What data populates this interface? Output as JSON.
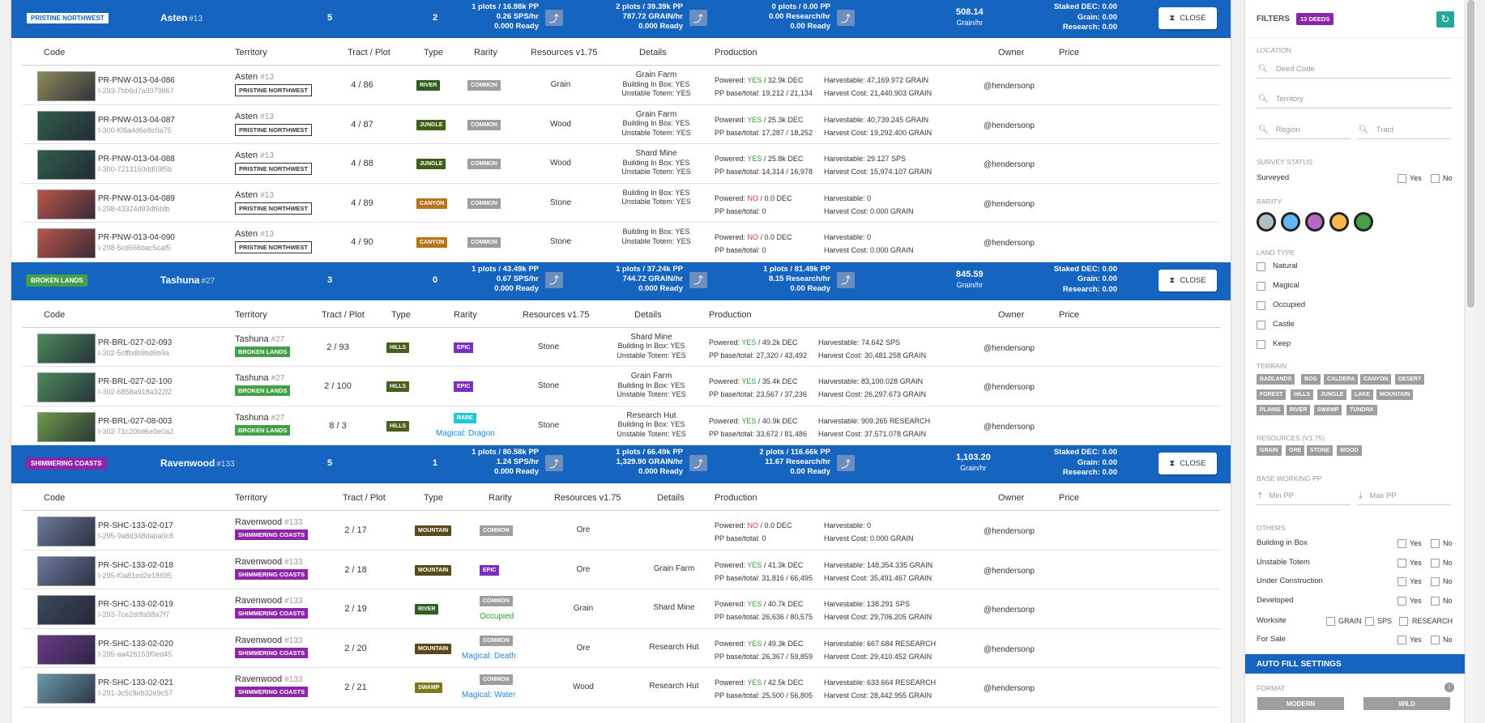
{
  "groups": [
    {
      "region": "PRISTINE NORTHWEST",
      "region_color": "#ffffff",
      "region_text": "#1565c0",
      "name": "Asten",
      "num": "#13",
      "deeds": "5",
      "zero": "2",
      "p1": [
        "1 plots / 16.98k PP",
        "0.26 SPS/hr",
        "0.000 Ready"
      ],
      "p2": [
        "2 plots / 39.39k PP",
        "787.72 GRAIN/hr",
        "0.000 Ready"
      ],
      "p3": [
        "0 plots / 0.00 PP",
        "0.00 Research/hr",
        "0.00 Ready"
      ],
      "rate": "508.14",
      "rate_unit": "Grain/hr",
      "staked": [
        "Staked DEC: 0.00",
        "Grain: 0.00",
        "Research: 0.00"
      ],
      "close": "CLOSE",
      "cols": [
        "Code",
        "Territory",
        "Tract / Plot",
        "Type",
        "Rarity",
        "Resources v1.75",
        "Details",
        "Production",
        "Owner",
        "Price"
      ],
      "rows": [
        {
          "code": "PR-PNW-013-04-086",
          "sub": "I-293-7bb6d7a3979867",
          "terr": "Asten",
          "tnum": "#13",
          "region": "PRISTINE NORTHWEST",
          "tp": "4 / 86",
          "type": "RIVER",
          "type_color": "#2e5e1e",
          "rarity": "COMMON",
          "rar_color": "#9e9e9e",
          "rar_extra": "",
          "res": "Grain",
          "det": [
            "Grain Farm",
            "Building In Box: YES",
            "Unstable Totem: YES"
          ],
          "pw": "YES",
          "pwv": "32.9k DEC",
          "ppl": "PP base/total:",
          "pp": "19,212 / 21,134",
          "hv": "Harvestable: 47,169.972 GRAIN",
          "hc": "Harvest Cost: 21,440.903 GRAIN",
          "owner": "@hendersonp",
          "thumb": "#8a8a5a"
        },
        {
          "code": "PR-PNW-013-04-087",
          "sub": "I-300-f08a4d6e8c0a75",
          "terr": "Asten",
          "tnum": "#13",
          "region": "PRISTINE NORTHWEST",
          "tp": "4 / 87",
          "type": "JUNGLE",
          "type_color": "#3e5e14",
          "rarity": "COMMON",
          "rar_color": "#9e9e9e",
          "rar_extra": "",
          "res": "Wood",
          "det": [
            "Grain Farm",
            "Building In Box: YES",
            "Unstable Totem: YES"
          ],
          "pw": "YES",
          "pwv": "25.3k DEC",
          "ppl": "PP base/total:",
          "pp": "17,287 / 18,252",
          "hv": "Harvestable: 40,739.245 GRAIN",
          "hc": "Harvest Cost: 19,292.400 GRAIN",
          "owner": "@hendersonp",
          "thumb": "#2e5e4a"
        },
        {
          "code": "PR-PNW-013-04-088",
          "sub": "I-300-7213150dd59f5b",
          "terr": "Asten",
          "tnum": "#13",
          "region": "PRISTINE NORTHWEST",
          "tp": "4 / 88",
          "type": "JUNGLE",
          "type_color": "#3e5e14",
          "rarity": "COMMON",
          "rar_color": "#9e9e9e",
          "rar_extra": "",
          "res": "Wood",
          "det": [
            "Shard Mine",
            "Building In Box: YES",
            "Unstable Totem: YES"
          ],
          "pw": "YES",
          "pwv": "25.8k DEC",
          "ppl": "PP base/total:",
          "pp": "14,314 / 16,978",
          "hv": "Harvestable: 29.127 SPS",
          "hc": "Harvest Cost: 15,974.107 GRAIN",
          "owner": "@hendersonp",
          "thumb": "#2e5e4a"
        },
        {
          "code": "PR-PNW-013-04-089",
          "sub": "I-298-43324d93df6bfb",
          "terr": "Asten",
          "tnum": "#13",
          "region": "PRISTINE NORTHWEST",
          "tp": "4 / 89",
          "type": "CANYON",
          "type_color": "#b8741a",
          "rarity": "COMMON",
          "rar_color": "#9e9e9e",
          "rar_extra": "",
          "res": "Stone",
          "det": [
            "",
            "Building In Box: YES",
            "Unstable Totem: YES"
          ],
          "pw": "NO",
          "pwv": "0.0 DEC",
          "ppl": "PP base/total:",
          "pp": "0",
          "hv": "Harvestable: 0",
          "hc": "Harvest Cost: 0.000 GRAIN",
          "owner": "@hendersonp",
          "thumb": "#b8564a"
        },
        {
          "code": "PR-PNW-013-04-090",
          "sub": "I-298-5cd666bac5caf5",
          "terr": "Asten",
          "tnum": "#13",
          "region": "PRISTINE NORTHWEST",
          "tp": "4 / 90",
          "type": "CANYON",
          "type_color": "#b8741a",
          "rarity": "COMMON",
          "rar_color": "#9e9e9e",
          "rar_extra": "",
          "res": "Stone",
          "det": [
            "",
            "Building In Box: YES",
            "Unstable Totem: YES"
          ],
          "pw": "NO",
          "pwv": "0.0 DEC",
          "ppl": "PP base/total:",
          "pp": "0",
          "hv": "Harvestable: 0",
          "hc": "Harvest Cost: 0.000 GRAIN",
          "owner": "@hendersonp",
          "thumb": "#b8564a"
        }
      ]
    },
    {
      "region": "BROKEN LANDS",
      "region_color": "#43a047",
      "region_text": "#ffffff",
      "name": "Tashuna",
      "num": "#27",
      "deeds": "3",
      "zero": "0",
      "p1": [
        "1 plots / 43.49k PP",
        "0.67 SPS/hr",
        "0.000 Ready"
      ],
      "p2": [
        "1 plots / 37.24k PP",
        "744.72 GRAIN/hr",
        "0.000 Ready"
      ],
      "p3": [
        "1 plots / 81.49k PP",
        "8.15 Research/hr",
        "0.00 Ready"
      ],
      "rate": "845.59",
      "rate_unit": "Grain/hr",
      "staked": [
        "Staked DEC: 0.00",
        "Grain: 0.00",
        "Research: 0.00"
      ],
      "close": "CLOSE",
      "cols": [
        "Code",
        "Territory",
        "Tract / Plot",
        "Type",
        "Rarity",
        "Resources v1.75",
        "Details",
        "Production",
        "Owner",
        "Price"
      ],
      "rows": [
        {
          "code": "PR-BRL-027-02-093",
          "sub": "I-302-5cffbdb9bd6b9a",
          "terr": "Tashuna",
          "tnum": "#27",
          "region": "BROKEN LANDS",
          "tp": "2 / 93",
          "type": "HILLS",
          "type_color": "#4a5e1a",
          "rarity": "EPIC",
          "rar_color": "#7b2fbf",
          "rar_extra": "",
          "res": "Stone",
          "det": [
            "Shard Mine",
            "Building In Box: YES",
            "Unstable Totem: YES"
          ],
          "pw": "YES",
          "pwv": "49.2k DEC",
          "ppl": "PP base/total:",
          "pp": "27,320 / 43,492",
          "hv": "Harvestable: 74.642 SPS",
          "hc": "Harvest Cost: 30,481.258 GRAIN",
          "owner": "@hendersonp",
          "thumb": "#4a8a5a"
        },
        {
          "code": "PR-BRL-027-02-100",
          "sub": "I-302-6858a918a322f2",
          "terr": "Tashuna",
          "tnum": "#27",
          "region": "BROKEN LANDS",
          "tp": "2 / 100",
          "type": "HILLS",
          "type_color": "#4a5e1a",
          "rarity": "EPIC",
          "rar_color": "#7b2fbf",
          "rar_extra": "",
          "res": "Stone",
          "det": [
            "Grain Farm",
            "Building In Box: YES",
            "Unstable Totem: YES"
          ],
          "pw": "YES",
          "pwv": "35.4k DEC",
          "ppl": "PP base/total:",
          "pp": "23,567 / 37,236",
          "hv": "Harvestable: 83,100.028 GRAIN",
          "hc": "Harvest Cost: 26,297.673 GRAIN",
          "owner": "@hendersonp",
          "thumb": "#4a8a5a"
        },
        {
          "code": "PR-BRL-027-08-003",
          "sub": "I-302-71c20bd6e9e0a2",
          "terr": "Tashuna",
          "tnum": "#27",
          "region": "BROKEN LANDS",
          "tp": "8 / 3",
          "type": "HILLS",
          "type_color": "#4a5e1a",
          "rarity": "RARE",
          "rar_color": "#26c6da",
          "rar_extra": "Magical: Dragon",
          "res": "Stone",
          "det": [
            "Research Hut",
            "Building In Box: YES",
            "Unstable Totem: YES"
          ],
          "pw": "YES",
          "pwv": "40.9k DEC",
          "ppl": "PP base/total:",
          "pp": "33,672 / 81,486",
          "hv": "Harvestable: 909.265 RESEARCH",
          "hc": "Harvest Cost: 37,571.078 GRAIN",
          "owner": "@hendersonp",
          "thumb": "#6a9a4a"
        }
      ]
    },
    {
      "region": "SHIMMERING COASTS",
      "region_color": "#8e24aa",
      "region_text": "#ffffff",
      "name": "Ravenwood",
      "num": "#133",
      "deeds": "5",
      "zero": "1",
      "p1": [
        "1 plots / 80.58k PP",
        "1.24 SPS/hr",
        "0.000 Ready"
      ],
      "p2": [
        "1 plots / 66.49k PP",
        "1,329.90 GRAIN/hr",
        "0.000 Ready"
      ],
      "p3": [
        "2 plots / 116.66k PP",
        "11.67 Research/hr",
        "0.00 Ready"
      ],
      "rate": "1,103.20",
      "rate_unit": "Grain/hr",
      "staked": [
        "Staked DEC: 0.00",
        "Grain: 0.00",
        "Research: 0.00"
      ],
      "close": "CLOSE",
      "cols": [
        "Code",
        "Territory",
        "Tract / Plot",
        "Type",
        "Rarity",
        "Resources v1.75",
        "Details",
        "Production",
        "Owner",
        "Price"
      ],
      "rows": [
        {
          "code": "PR-SHC-133-02-017",
          "sub": "I-295-9a8d348daba0c8",
          "terr": "Ravenwood",
          "tnum": "#133",
          "region": "SHIMMERING COASTS",
          "tp": "2 / 17",
          "type": "MOUNTAIN",
          "type_color": "#5a4a1a",
          "rarity": "COMMON",
          "rar_color": "#9e9e9e",
          "rar_extra": "",
          "res": "Ore",
          "det": [
            "",
            "",
            ""
          ],
          "pw": "NO",
          "pwv": "0.0 DEC",
          "ppl": "PP base/total:",
          "pp": "0",
          "hv": "Harvestable: 0",
          "hc": "Harvest Cost: 0.000 GRAIN",
          "owner": "@hendersonp",
          "thumb": "#6a7a9a"
        },
        {
          "code": "PR-SHC-133-02-018",
          "sub": "I-295-f0a81ed2e18695",
          "terr": "Ravenwood",
          "tnum": "#133",
          "region": "SHIMMERING COASTS",
          "tp": "2 / 18",
          "type": "MOUNTAIN",
          "type_color": "#5a4a1a",
          "rarity": "EPIC",
          "rar_color": "#7b2fbf",
          "rar_extra": "",
          "res": "Ore",
          "det": [
            "",
            "Grain Farm",
            ""
          ],
          "pw": "YES",
          "pwv": "41.3k DEC",
          "ppl": "PP base/total:",
          "pp": "31,816 / 66,495",
          "hv": "Harvestable: 148,354.335 GRAIN",
          "hc": "Harvest Cost: 35,491.467 GRAIN",
          "owner": "@hendersonp",
          "thumb": "#6a7a9a"
        },
        {
          "code": "PR-SHC-133-02-019",
          "sub": "I-293-7ce2ddfa98a7f7",
          "terr": "Ravenwood",
          "tnum": "#133",
          "region": "SHIMMERING COASTS",
          "tp": "2 / 19",
          "type": "RIVER",
          "type_color": "#2e5e1e",
          "rarity": "COMMON",
          "rar_color": "#9e9e9e",
          "rar_extra": "Occupied",
          "res": "Grain",
          "det": [
            "",
            "Shard Mine",
            ""
          ],
          "pw": "YES",
          "pwv": "40.7k DEC",
          "ppl": "PP base/total:",
          "pp": "26,636 / 80,575",
          "hv": "Harvestable: 138.291 SPS",
          "hc": "Harvest Cost: 29,706.205 GRAIN",
          "owner": "@hendersonp",
          "thumb": "#3a4a5a"
        },
        {
          "code": "PR-SHC-133-02-020",
          "sub": "I-295-aa426153f0ed45",
          "terr": "Ravenwood",
          "tnum": "#133",
          "region": "SHIMMERING COASTS",
          "tp": "2 / 20",
          "type": "MOUNTAIN",
          "type_color": "#5a4a1a",
          "rarity": "COMMON",
          "rar_color": "#9e9e9e",
          "rar_extra": "Magical: Death",
          "res": "Ore",
          "det": [
            "",
            "Research Hut",
            ""
          ],
          "pw": "YES",
          "pwv": "49.3k DEC",
          "ppl": "PP base/total:",
          "pp": "26,367 / 59,859",
          "hv": "Harvestable: 667.684 RESEARCH",
          "hc": "Harvest Cost: 29,410.452 GRAIN",
          "owner": "@hendersonp",
          "thumb": "#6a3a8a"
        },
        {
          "code": "PR-SHC-133-02-021",
          "sub": "I-291-3c5c8eb32e9c57",
          "terr": "Ravenwood",
          "tnum": "#133",
          "region": "SHIMMERING COASTS",
          "tp": "2 / 21",
          "type": "SWAMP",
          "type_color": "#7a7a1a",
          "rarity": "COMMON",
          "rar_color": "#9e9e9e",
          "rar_extra": "Magical: Water",
          "res": "Wood",
          "det": [
            "",
            "Research Hut",
            ""
          ],
          "pw": "YES",
          "pwv": "42.5k DEC",
          "ppl": "PP base/total:",
          "pp": "25,500 / 56,805",
          "hv": "Harvestable: 633.664 RESEARCH",
          "hc": "Harvest Cost: 28,442.955 GRAIN",
          "owner": "@hendersonp",
          "thumb": "#6a9aaa"
        }
      ]
    }
  ],
  "sidebar": {
    "title": "FILTERS",
    "count": "13 DEEDS",
    "location": "LOCATION",
    "deed_code": "Deed Code",
    "territory": "Territory",
    "region": "Region",
    "tract": "Tract",
    "survey_status": "SURVEY STATUS",
    "surveyed": "Surveyed",
    "yes": "Yes",
    "no": "No",
    "rarity": "RARITY",
    "rarity_colors": [
      "#b0bec5",
      "#64b5f6",
      "#ba68c8",
      "#ffb74d",
      "#43a047"
    ],
    "land_type": "LAND TYPE",
    "land_types": [
      "Natural",
      "Magical",
      "Occupied",
      "Castle",
      "Keep"
    ],
    "terrain": "TERRAIN",
    "terrain_rows": [
      [
        "BADLANDS",
        "BOG",
        "CALDERA",
        "CANYON",
        "DESERT"
      ],
      [
        "FOREST",
        "HILLS",
        "JUNGLE",
        "LAKE",
        "MOUNTAIN"
      ],
      [
        "PLAINS",
        "RIVER",
        "SWAMP",
        "TUNDRA"
      ]
    ],
    "resources": "RESOURCES (V1.75)",
    "resource_tags": [
      "GRAIN",
      "ORE",
      "STONE",
      "WOOD"
    ],
    "base_pp": "BASE WORKING PP",
    "min_pp": "Min PP",
    "max_pp": "Max PP",
    "others": "OTHERS",
    "other_rows": [
      "Building in Box",
      "Unstable Totem",
      "Under Construction",
      "Developed"
    ],
    "worksite": "Worksite",
    "worksite_opts": [
      "GRAIN",
      "SPS",
      "RESEARCH"
    ],
    "for_sale": "For Sale",
    "autofill": "AUTO FILL SETTINGS",
    "format": "FORMAT",
    "modern": "MODERN",
    "wild": "WILD"
  }
}
